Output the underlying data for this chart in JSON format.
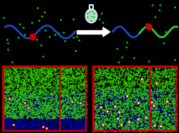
{
  "bg_top": "#000000",
  "green_dot_color": "#00cc00",
  "red_dot_color": "#cc0000",
  "blue_chain_color": "#2244cc",
  "green_chain_color": "#33cc33",
  "arrow_color": "#ffffff",
  "frame_color": "#cc0000",
  "dark_frame_color": "#330000",
  "network_green": "#33cc00",
  "network_blue": "#0000bb",
  "figsize": [
    2.54,
    1.89
  ],
  "dpi": 100
}
